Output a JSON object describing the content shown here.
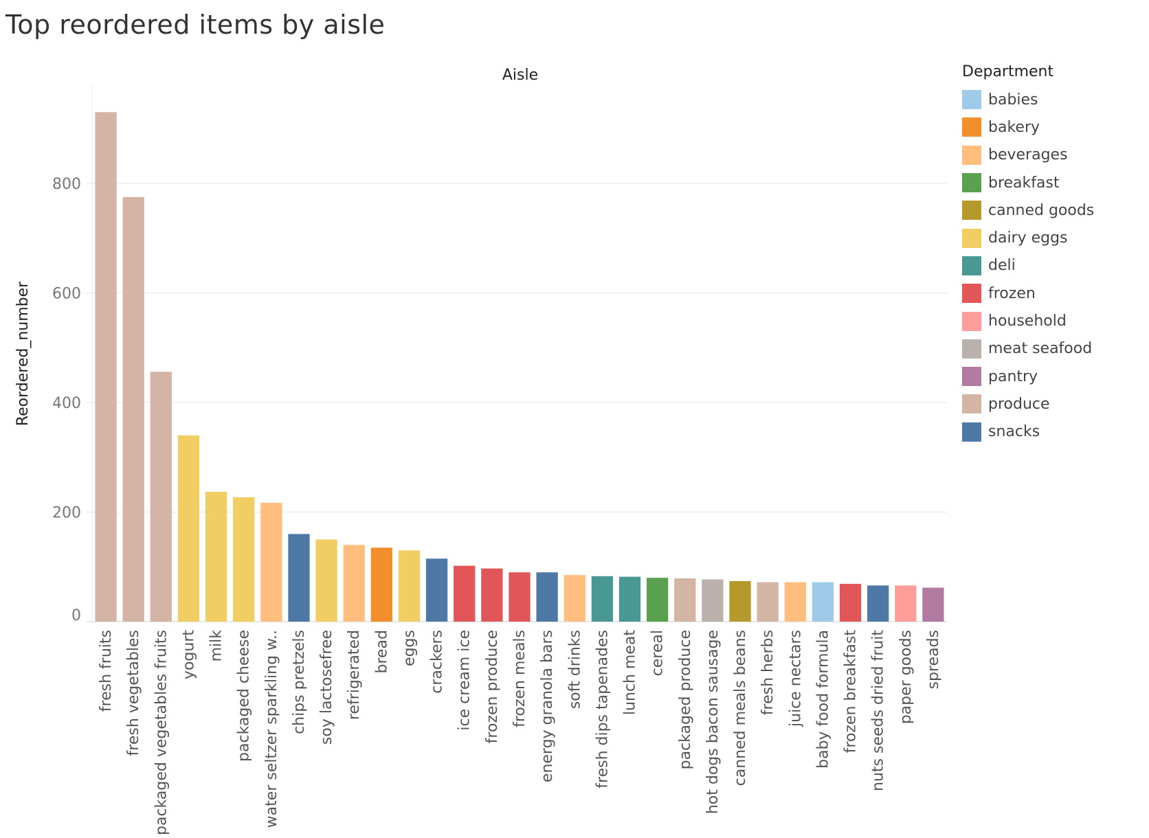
{
  "title": "Top reordered items by aisle",
  "chart_data": {
    "type": "bar",
    "title": "Top reordered items by aisle",
    "column_header": "Aisle",
    "ylabel": "Reordered_number",
    "ylim": [
      0,
      950
    ],
    "yticks": [
      0,
      200,
      400,
      600,
      800
    ],
    "grid": true,
    "legend_title": "Department",
    "legend_position": "right",
    "categories": [
      "fresh fruits",
      "fresh vegetables",
      "packaged vegetables fruits",
      "yogurt",
      "milk",
      "packaged cheese",
      "water seltzer sparkling w..",
      "chips pretzels",
      "soy lactosefree",
      "refrigerated",
      "bread",
      "eggs",
      "crackers",
      "ice cream ice",
      "frozen produce",
      "frozen meals",
      "energy granola bars",
      "soft drinks",
      "fresh dips tapenades",
      "lunch meat",
      "cereal",
      "packaged produce",
      "hot dogs bacon sausage",
      "canned meals beans",
      "fresh herbs",
      "juice nectars",
      "baby food formula",
      "frozen breakfast",
      "nuts seeds dried fruit",
      "paper goods",
      "spreads"
    ],
    "values": [
      930,
      775,
      456,
      340,
      237,
      227,
      217,
      160,
      150,
      140,
      135,
      130,
      115,
      102,
      97,
      90,
      90,
      85,
      83,
      82,
      80,
      79,
      77,
      74,
      72,
      72,
      72,
      69,
      66,
      66,
      62
    ],
    "departments": [
      "produce",
      "produce",
      "produce",
      "dairy eggs",
      "dairy eggs",
      "dairy eggs",
      "beverages",
      "snacks",
      "dairy eggs",
      "beverages",
      "bakery",
      "dairy eggs",
      "snacks",
      "frozen",
      "frozen",
      "frozen",
      "snacks",
      "beverages",
      "deli",
      "deli",
      "breakfast",
      "produce",
      "meat seafood",
      "canned goods",
      "produce",
      "beverages",
      "babies",
      "frozen",
      "snacks",
      "household",
      "pantry"
    ],
    "legend": [
      {
        "name": "babies",
        "color": "#a0cbe8"
      },
      {
        "name": "bakery",
        "color": "#f28e2b"
      },
      {
        "name": "beverages",
        "color": "#ffbe7d"
      },
      {
        "name": "breakfast",
        "color": "#59a14f"
      },
      {
        "name": "canned goods",
        "color": "#b6992d"
      },
      {
        "name": "dairy eggs",
        "color": "#f1ce63"
      },
      {
        "name": "deli",
        "color": "#499894"
      },
      {
        "name": "frozen",
        "color": "#e15759"
      },
      {
        "name": "household",
        "color": "#ff9d9a"
      },
      {
        "name": "meat seafood",
        "color": "#bab0ac"
      },
      {
        "name": "pantry",
        "color": "#b07aa1"
      },
      {
        "name": "produce",
        "color": "#d4b5a5"
      },
      {
        "name": "snacks",
        "color": "#4e79a7"
      }
    ]
  }
}
